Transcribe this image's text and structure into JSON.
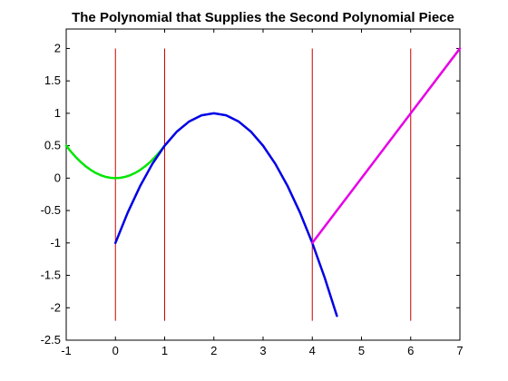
{
  "chart_data": {
    "type": "line",
    "title": "The Polynomial that Supplies the Second Polynomial Piece",
    "xlabel": "",
    "ylabel": "",
    "xlim": [
      -1,
      7
    ],
    "ylim": [
      -2.5,
      2.3
    ],
    "xticks": [
      -1,
      0,
      1,
      2,
      3,
      4,
      5,
      6,
      7
    ],
    "xtick_labels": [
      "-1",
      "0",
      "1",
      "2",
      "3",
      "4",
      "5",
      "6",
      "7"
    ],
    "yticks": [
      -2.5,
      -2,
      -1.5,
      -1,
      -0.5,
      0,
      0.5,
      1,
      1.5,
      2
    ],
    "ytick_labels": [
      "-2.5",
      "-2",
      "-1.5",
      "-1",
      "-0.5",
      "0",
      "0.5",
      "1",
      "1.5",
      "2"
    ],
    "grid": false,
    "legend": "none",
    "vertical_lines": {
      "color": "#cc0000",
      "x": [
        0,
        1,
        4,
        6
      ],
      "y_range": [
        -2.2,
        2
      ]
    },
    "series": [
      {
        "color": "#00e600",
        "x": [
          -1,
          -0.9,
          -0.8,
          -0.7,
          -0.6,
          -0.5,
          -0.4,
          -0.3,
          -0.2,
          -0.1,
          0,
          0.1,
          0.2,
          0.3,
          0.4,
          0.5,
          0.6,
          0.7,
          0.8,
          0.9,
          1
        ],
        "y": [
          0.5,
          0.405,
          0.32,
          0.245,
          0.18,
          0.125,
          0.08,
          0.045,
          0.02,
          0.005,
          0,
          0.005,
          0.02,
          0.045,
          0.08,
          0.125,
          0.18,
          0.245,
          0.32,
          0.405,
          0.5
        ]
      },
      {
        "color": "#0000e6",
        "x": [
          0,
          0.25,
          0.5,
          0.75,
          1,
          1.25,
          1.5,
          1.75,
          2,
          2.25,
          2.5,
          2.75,
          3,
          3.25,
          3.5,
          3.75,
          4,
          4.25,
          4.5
        ],
        "y": [
          -1,
          -0.531,
          -0.125,
          0.219,
          0.5,
          0.719,
          0.875,
          0.969,
          1,
          0.969,
          0.875,
          0.719,
          0.5,
          0.219,
          -0.125,
          -0.531,
          -1,
          -1.531,
          -2.125
        ]
      },
      {
        "color": "#e600e6",
        "x": [
          4,
          7
        ],
        "y": [
          -1,
          2
        ]
      }
    ]
  }
}
